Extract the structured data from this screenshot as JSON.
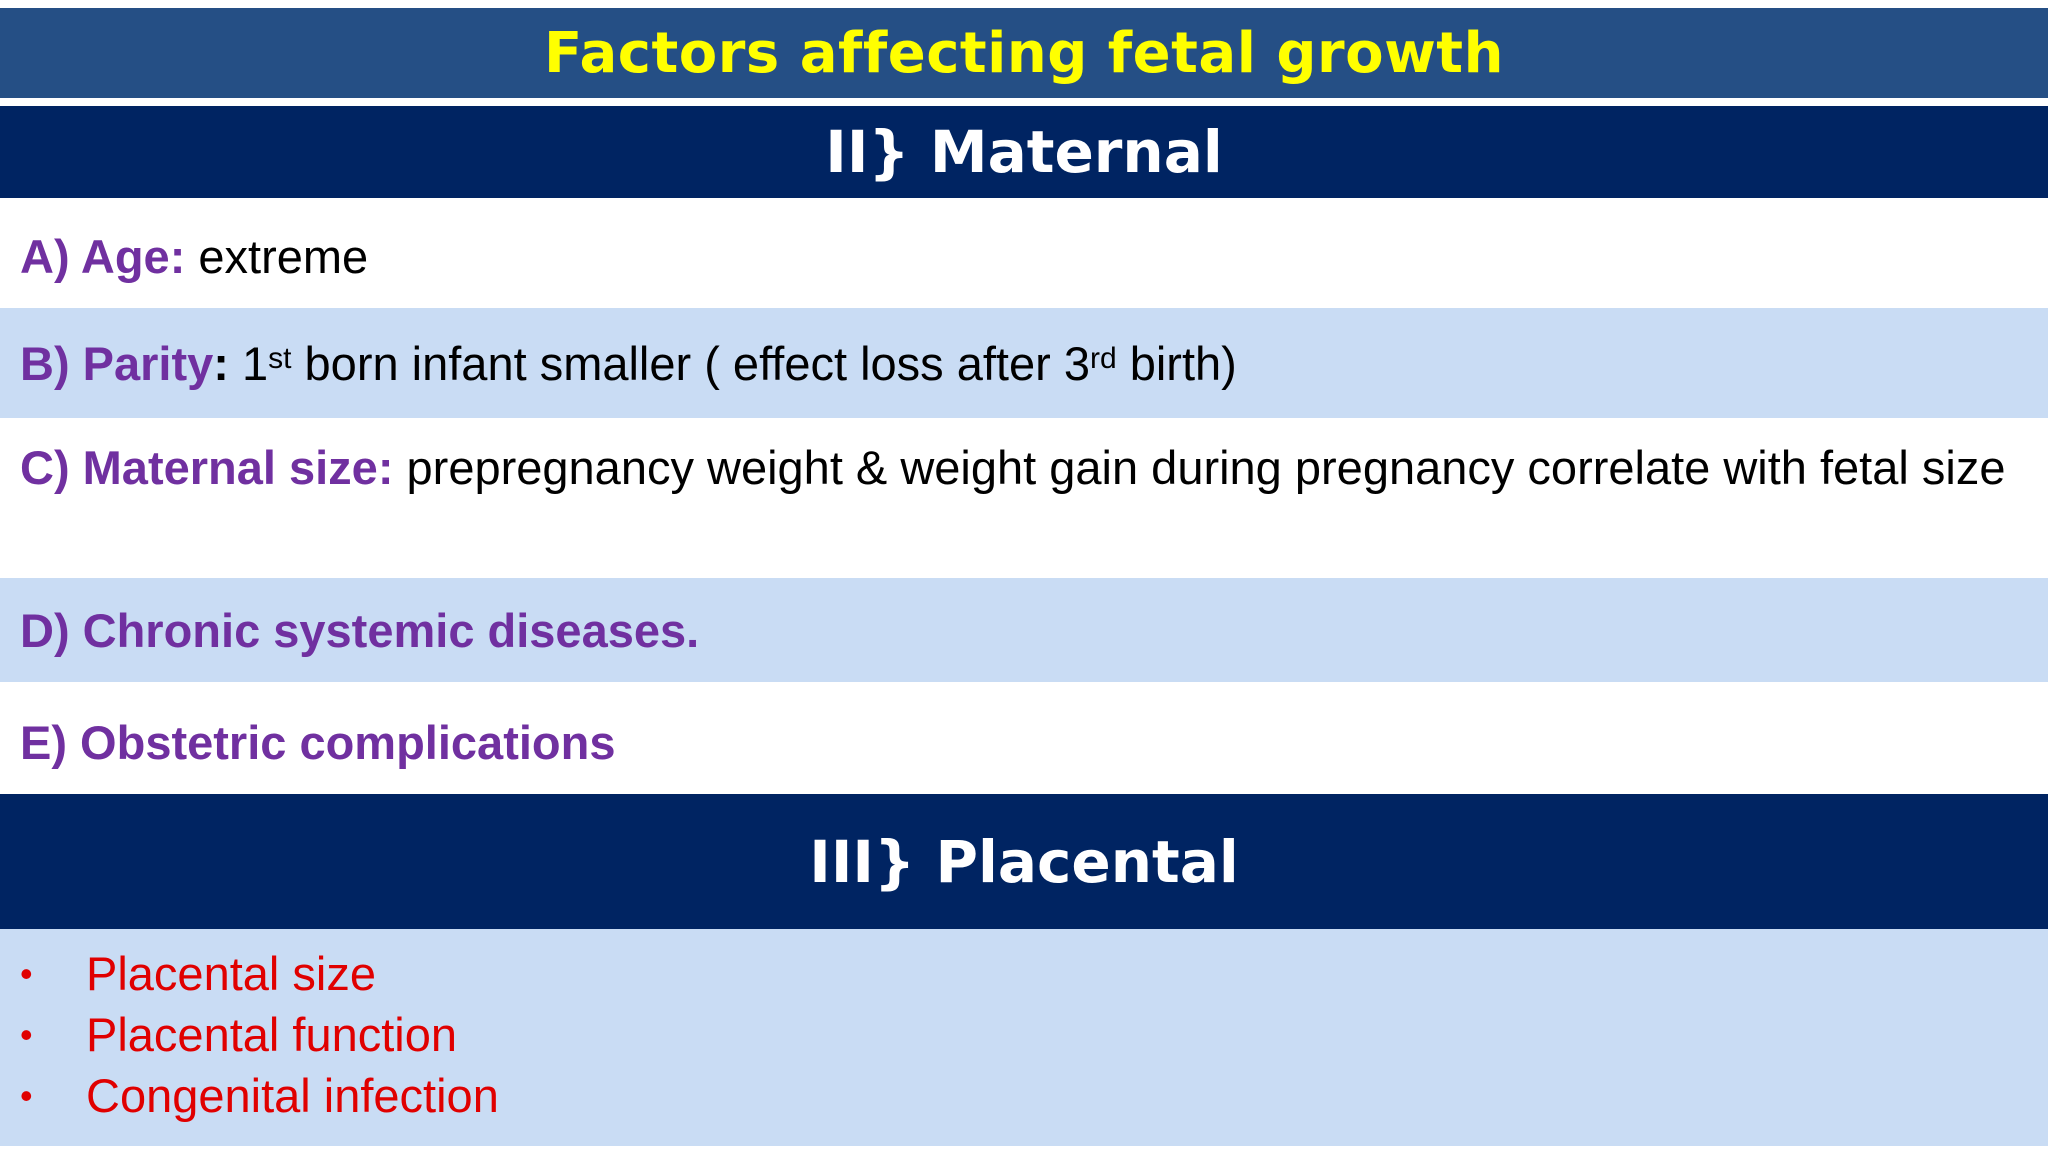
{
  "title": "Factors affecting fetal growth",
  "maternal": {
    "heading": "II} Maternal",
    "items": [
      {
        "label": "A) Age:",
        "text": " extreme"
      },
      {
        "label": "B) Parity",
        "colon": ":",
        "text_1": " 1",
        "sup_1": "st",
        "text_2": " born infant smaller ( effect loss after 3",
        "sup_2": "rd",
        "text_3": " birth)"
      },
      {
        "label": "C) Maternal size:",
        "text": " prepregnancy weight & weight gain during pregnancy correlate with fetal size"
      },
      {
        "label": "D) Chronic systemic diseases."
      },
      {
        "label": "E) Obstetric complications"
      }
    ]
  },
  "placental": {
    "heading": "III} Placental",
    "bullet": "•",
    "items": [
      "Placental size",
      "Placental function",
      "Congenital infection"
    ]
  },
  "colors": {
    "title_bar": "#254f85",
    "title_text": "#ffff00",
    "section_bar": "#002462",
    "label": "#7030a0",
    "shaded_row": "#c9dcf4",
    "placental_text": "#e00000"
  }
}
